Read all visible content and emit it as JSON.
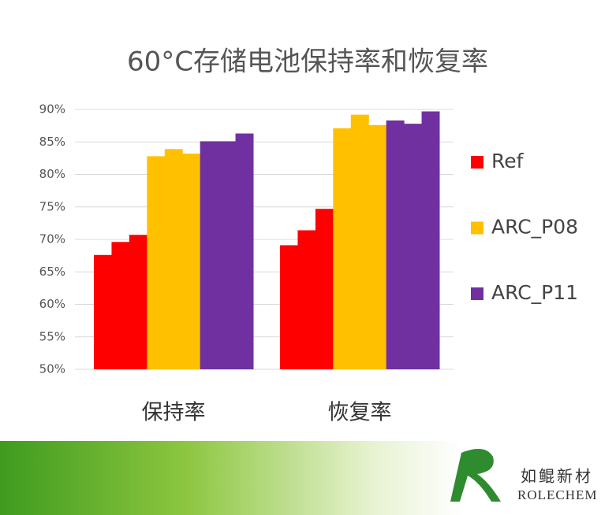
{
  "chart_data": {
    "type": "bar",
    "title": "60°C存储电池保持率和恢复率",
    "categories": [
      "保持率",
      "恢复率"
    ],
    "series": [
      {
        "name": "Ref",
        "color": "#ff0000",
        "values": [
          [
            67.6,
            69.6,
            70.7
          ],
          [
            69.1,
            71.4,
            74.7
          ]
        ]
      },
      {
        "name": "ARC_P08",
        "color": "#ffc000",
        "values": [
          [
            82.8,
            83.9,
            83.2
          ],
          [
            87.1,
            89.2,
            87.6
          ]
        ]
      },
      {
        "name": "ARC_P11",
        "color": "#7030a0",
        "values": [
          [
            85.1,
            85.1,
            86.3
          ],
          [
            88.3,
            87.8,
            89.7
          ]
        ]
      }
    ],
    "ylim": [
      50,
      90
    ],
    "yticks": [
      {
        "value": 50,
        "label": "50%"
      },
      {
        "value": 55,
        "label": "55%"
      },
      {
        "value": 60,
        "label": "60%"
      },
      {
        "value": 65,
        "label": "65%"
      },
      {
        "value": 70,
        "label": "70%"
      },
      {
        "value": 75,
        "label": "75%"
      },
      {
        "value": 80,
        "label": "80%"
      },
      {
        "value": 85,
        "label": "85%"
      },
      {
        "value": 90,
        "label": "90%"
      }
    ],
    "grid": true,
    "legend": "right"
  },
  "footer": {
    "brand_cn": "如鲲新材",
    "brand_en": "ROLECHEM"
  }
}
